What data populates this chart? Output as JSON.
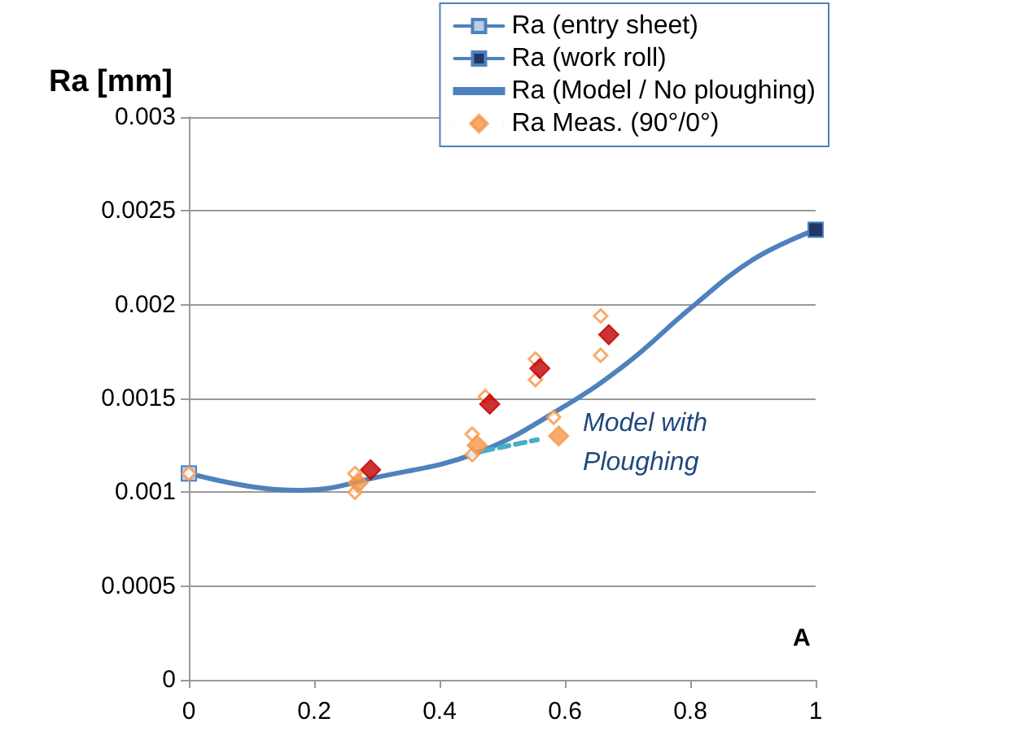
{
  "chart_data": {
    "type": "scatter",
    "ylabel": "Ra [mm]",
    "xlabel": "A",
    "xlim": [
      0,
      1
    ],
    "xticks": [
      0,
      0.2,
      0.4,
      0.6,
      0.8,
      1
    ],
    "ylim": [
      0,
      0.003
    ],
    "yticks": [
      0,
      0.0005,
      0.001,
      0.0015,
      0.002,
      0.0025,
      0.003
    ],
    "grid": "y",
    "legend": "top right",
    "annotations": [
      {
        "text": "Model with Ploughing",
        "x": 0.556,
        "y": 0.00128
      }
    ],
    "series": [
      {
        "name": "Ra (entry sheet)",
        "type": "line",
        "marker": "square",
        "color": "#b9cde5",
        "x": [
          0
        ],
        "values": [
          0.0011
        ]
      },
      {
        "name": "Ra (work roll)",
        "type": "line",
        "marker": "square",
        "color": "#1f3864",
        "x": [
          1
        ],
        "values": [
          0.0024
        ]
      },
      {
        "name": "Ra (Model / No ploughing)",
        "type": "line",
        "marker": "none",
        "color": "#4f81bd",
        "x": [
          0,
          0.1,
          0.18,
          0.3,
          0.46,
          0.6,
          0.7,
          0.8,
          0.9,
          1
        ],
        "values": [
          0.0011,
          0.00103,
          0.00101,
          0.00108,
          0.00121,
          0.00146,
          0.00169,
          0.00198,
          0.00224,
          0.0024
        ]
      },
      {
        "marker": "diamond",
        "color": "#f79646",
        "x": [
          0,
          0.265,
          0.265,
          0.452,
          0.452,
          0.473,
          0.553,
          0.553,
          0.582,
          0.657,
          0.657
        ],
        "values": [
          0.0011,
          0.0011,
          0.001,
          0.00131,
          0.0012,
          0.00151,
          0.00171,
          0.0016,
          0.0014,
          0.00194,
          0.00173
        ]
      },
      {
        "name": "Ra Meas. (90°/0°)",
        "marker": "diamond",
        "color": "#f79646",
        "x": [
          0.27,
          0.46,
          0.59
        ],
        "values": [
          0.00105,
          0.00125,
          0.0013
        ]
      },
      {
        "marker": "diamond",
        "color": "#c00000",
        "x": [
          0.29,
          0.48,
          0.56,
          0.67
        ],
        "values": [
          0.00112,
          0.00147,
          0.00166,
          0.00184
        ]
      },
      {
        "type": "line",
        "marker": "none",
        "line_style": "dashed",
        "color": "#4bacc6",
        "x": [
          0.47,
          0.556
        ],
        "values": [
          0.00122,
          0.00128
        ]
      }
    ]
  }
}
